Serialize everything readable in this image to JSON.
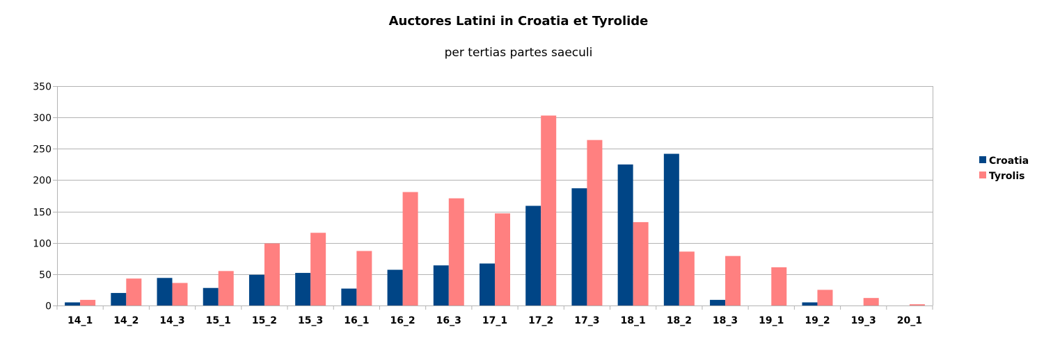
{
  "chart_data": {
    "type": "bar",
    "title": "Auctores Latini in Croatia et Tyrolide",
    "subtitle": "per tertias partes saeculi",
    "categories": [
      "14_1",
      "14_2",
      "14_3",
      "15_1",
      "15_2",
      "15_3",
      "16_1",
      "16_2",
      "16_3",
      "17_1",
      "17_2",
      "17_3",
      "18_1",
      "18_2",
      "18_3",
      "19_1",
      "19_2",
      "19_3",
      "20_1"
    ],
    "series": [
      {
        "name": "Croatia",
        "color": "#004586",
        "values": [
          5,
          20,
          44,
          28,
          49,
          52,
          27,
          57,
          64,
          67,
          159,
          187,
          225,
          242,
          9,
          0,
          5,
          0,
          0
        ]
      },
      {
        "name": "Tyrolis",
        "color": "#ff8080",
        "values": [
          9,
          43,
          36,
          55,
          99,
          116,
          87,
          181,
          171,
          147,
          303,
          264,
          133,
          86,
          79,
          61,
          25,
          12,
          2
        ]
      }
    ],
    "ylim": [
      0,
      350
    ],
    "yticks": [
      0,
      50,
      100,
      150,
      200,
      250,
      300,
      350
    ],
    "grid": true,
    "legend_position": "right"
  }
}
